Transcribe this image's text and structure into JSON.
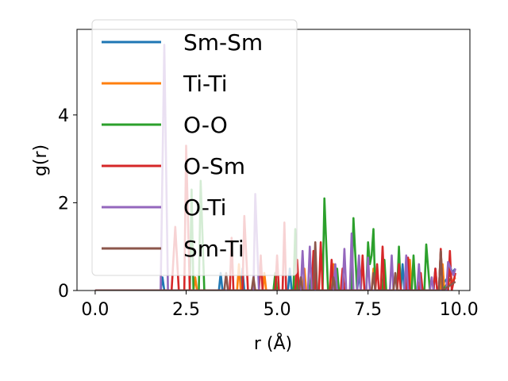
{
  "chart_data": {
    "type": "line",
    "xlabel": "r (Å)",
    "ylabel": "g(r)",
    "xlim": [
      -0.5,
      10.3
    ],
    "ylim": [
      0,
      5.95
    ],
    "xticks": [
      "0.0",
      "2.5",
      "5.0",
      "7.5",
      "10.0"
    ],
    "yticks": [
      "0",
      "2",
      "4"
    ],
    "legend_position": "upper left",
    "series": [
      {
        "name": "Sm-Sm",
        "color": "#1f77b4",
        "points": [
          [
            0,
            0
          ],
          [
            1.8,
            0
          ],
          [
            1.85,
            0.3
          ],
          [
            1.9,
            0
          ],
          [
            3.4,
            0
          ],
          [
            3.45,
            0.4
          ],
          [
            3.5,
            0
          ],
          [
            4.0,
            0
          ],
          [
            4.05,
            0.5
          ],
          [
            4.1,
            0
          ],
          [
            5.3,
            0
          ],
          [
            5.35,
            0.5
          ],
          [
            5.4,
            0
          ],
          [
            6.0,
            0
          ],
          [
            6.05,
            0.5
          ],
          [
            6.1,
            0
          ],
          [
            7.2,
            0
          ],
          [
            7.25,
            0.4
          ],
          [
            7.3,
            0
          ],
          [
            8.4,
            0
          ],
          [
            8.45,
            0.6
          ],
          [
            8.5,
            0
          ],
          [
            9.3,
            0
          ],
          [
            9.35,
            0.5
          ],
          [
            9.4,
            0
          ],
          [
            9.9,
            0.5
          ]
        ]
      },
      {
        "name": "Ti-Ti",
        "color": "#ff7f0e",
        "points": [
          [
            0,
            0
          ],
          [
            2.7,
            0
          ],
          [
            2.75,
            0.3
          ],
          [
            2.8,
            0
          ],
          [
            3.9,
            0
          ],
          [
            3.95,
            0.6
          ],
          [
            4.0,
            0
          ],
          [
            4.6,
            0
          ],
          [
            4.65,
            0.4
          ],
          [
            4.7,
            0
          ],
          [
            5.7,
            0
          ],
          [
            5.75,
            0.5
          ],
          [
            5.8,
            0
          ],
          [
            6.5,
            0
          ],
          [
            6.55,
            0.6
          ],
          [
            6.6,
            0
          ],
          [
            7.6,
            0
          ],
          [
            7.65,
            0.5
          ],
          [
            7.7,
            0
          ],
          [
            8.6,
            0
          ],
          [
            8.65,
            0.7
          ],
          [
            8.7,
            0
          ],
          [
            9.5,
            0
          ],
          [
            9.55,
            0.6
          ],
          [
            9.6,
            0
          ],
          [
            9.9,
            0.3
          ]
        ]
      },
      {
        "name": "O-O",
        "color": "#2ca02c",
        "points": [
          [
            0,
            0
          ],
          [
            2.6,
            0
          ],
          [
            2.65,
            2.3
          ],
          [
            2.7,
            0
          ],
          [
            2.85,
            0
          ],
          [
            2.9,
            2.5
          ],
          [
            3.0,
            0
          ],
          [
            4.9,
            0
          ],
          [
            4.95,
            0.4
          ],
          [
            5.0,
            0
          ],
          [
            5.45,
            0
          ],
          [
            5.5,
            1.4
          ],
          [
            5.55,
            0
          ],
          [
            5.9,
            0
          ],
          [
            5.95,
            0.5
          ],
          [
            6.0,
            0
          ],
          [
            6.25,
            0
          ],
          [
            6.3,
            2.1
          ],
          [
            6.4,
            0
          ],
          [
            6.6,
            0
          ],
          [
            6.65,
            0.5
          ],
          [
            6.7,
            0
          ],
          [
            7.05,
            0
          ],
          [
            7.1,
            1.65
          ],
          [
            7.2,
            0
          ],
          [
            7.45,
            0
          ],
          [
            7.5,
            1.1
          ],
          [
            7.55,
            0.6
          ],
          [
            7.6,
            0.8
          ],
          [
            7.65,
            1.4
          ],
          [
            7.7,
            0
          ],
          [
            7.9,
            0
          ],
          [
            7.95,
            0.7
          ],
          [
            8.0,
            0
          ],
          [
            8.3,
            0
          ],
          [
            8.35,
            1.0
          ],
          [
            8.4,
            0
          ],
          [
            8.7,
            0
          ],
          [
            8.75,
            0.8
          ],
          [
            8.8,
            0
          ],
          [
            9.05,
            0
          ],
          [
            9.1,
            1.05
          ],
          [
            9.2,
            0
          ],
          [
            9.45,
            0
          ],
          [
            9.5,
            0.9
          ],
          [
            9.55,
            0
          ],
          [
            9.8,
            0.3
          ]
        ]
      },
      {
        "name": "O-Sm",
        "color": "#d62728",
        "points": [
          [
            0,
            0
          ],
          [
            2.1,
            0
          ],
          [
            2.2,
            1.45
          ],
          [
            2.3,
            0
          ],
          [
            2.45,
            0
          ],
          [
            2.5,
            3.3
          ],
          [
            2.6,
            0
          ],
          [
            3.7,
            0
          ],
          [
            3.75,
            1.2
          ],
          [
            3.8,
            0
          ],
          [
            4.05,
            0
          ],
          [
            4.1,
            1.7
          ],
          [
            4.2,
            0
          ],
          [
            4.5,
            0
          ],
          [
            4.55,
            0.8
          ],
          [
            4.6,
            0
          ],
          [
            4.95,
            0
          ],
          [
            5.0,
            0.8
          ],
          [
            5.05,
            0
          ],
          [
            5.15,
            0
          ],
          [
            5.2,
            1.55
          ],
          [
            5.25,
            0
          ],
          [
            5.5,
            0
          ],
          [
            5.55,
            0.7
          ],
          [
            5.6,
            0
          ],
          [
            5.95,
            0
          ],
          [
            6.0,
            0.9
          ],
          [
            6.05,
            0
          ],
          [
            6.15,
            0
          ],
          [
            6.2,
            1.1
          ],
          [
            6.25,
            0
          ],
          [
            6.45,
            0
          ],
          [
            6.5,
            0.7
          ],
          [
            6.55,
            0
          ],
          [
            6.75,
            0
          ],
          [
            6.8,
            0.5
          ],
          [
            6.85,
            0
          ],
          [
            7.3,
            0
          ],
          [
            7.35,
            0.8
          ],
          [
            7.4,
            0
          ],
          [
            7.7,
            0
          ],
          [
            7.75,
            0.6
          ],
          [
            7.8,
            0
          ],
          [
            7.85,
            0
          ],
          [
            7.9,
            1.0
          ],
          [
            7.95,
            0
          ],
          [
            8.3,
            0
          ],
          [
            8.35,
            0.6
          ],
          [
            8.4,
            0
          ],
          [
            8.55,
            0
          ],
          [
            8.6,
            0.75
          ],
          [
            8.65,
            0
          ],
          [
            8.9,
            0
          ],
          [
            8.95,
            0.4
          ],
          [
            9.0,
            0
          ],
          [
            9.3,
            0
          ],
          [
            9.35,
            0.5
          ],
          [
            9.4,
            0
          ],
          [
            9.45,
            0
          ],
          [
            9.5,
            0.95
          ],
          [
            9.55,
            0
          ],
          [
            9.7,
            0
          ],
          [
            9.75,
            0.9
          ],
          [
            9.8,
            0
          ],
          [
            9.9,
            0.4
          ]
        ]
      },
      {
        "name": "O-Ti",
        "color": "#9467bd",
        "points": [
          [
            0,
            0
          ],
          [
            1.8,
            0
          ],
          [
            1.9,
            5.6
          ],
          [
            2.0,
            0
          ],
          [
            4.35,
            0
          ],
          [
            4.4,
            2.2
          ],
          [
            4.5,
            0
          ],
          [
            5.65,
            0
          ],
          [
            5.7,
            0.9
          ],
          [
            5.75,
            0
          ],
          [
            5.85,
            0
          ],
          [
            5.9,
            1.0
          ],
          [
            5.95,
            0
          ],
          [
            6.55,
            0
          ],
          [
            6.6,
            0.6
          ],
          [
            6.65,
            0
          ],
          [
            6.8,
            0
          ],
          [
            6.85,
            0.95
          ],
          [
            6.9,
            0
          ],
          [
            7.0,
            0
          ],
          [
            7.05,
            1.3
          ],
          [
            7.1,
            0
          ],
          [
            7.2,
            0
          ],
          [
            7.25,
            0.8
          ],
          [
            7.3,
            0
          ],
          [
            7.45,
            0
          ],
          [
            7.5,
            0.75
          ],
          [
            7.55,
            0
          ],
          [
            8.1,
            0
          ],
          [
            8.15,
            0.8
          ],
          [
            8.2,
            0
          ],
          [
            8.5,
            0
          ],
          [
            8.55,
            0.8
          ],
          [
            8.6,
            0
          ],
          [
            8.85,
            0
          ],
          [
            8.9,
            0.6
          ],
          [
            8.95,
            0
          ],
          [
            9.2,
            0
          ],
          [
            9.25,
            0.3
          ],
          [
            9.3,
            0
          ],
          [
            9.65,
            0
          ],
          [
            9.7,
            0.65
          ],
          [
            9.85,
            0.35
          ],
          [
            9.9,
            0.5
          ]
        ]
      },
      {
        "name": "Sm-Ti",
        "color": "#8c564b",
        "points": [
          [
            0,
            0
          ],
          [
            3.55,
            0
          ],
          [
            3.6,
            0.4
          ],
          [
            3.65,
            0
          ],
          [
            4.3,
            0
          ],
          [
            4.35,
            0.3
          ],
          [
            4.4,
            0
          ],
          [
            5.6,
            0
          ],
          [
            5.65,
            0.3
          ],
          [
            5.7,
            0
          ],
          [
            6.0,
            0
          ],
          [
            6.05,
            1.1
          ],
          [
            6.1,
            0
          ],
          [
            6.5,
            0
          ],
          [
            6.55,
            0.3
          ],
          [
            6.6,
            0
          ],
          [
            7.6,
            0
          ],
          [
            7.65,
            0.4
          ],
          [
            7.7,
            0
          ],
          [
            8.2,
            0
          ],
          [
            8.25,
            0.4
          ],
          [
            8.3,
            0
          ],
          [
            9.45,
            0
          ],
          [
            9.5,
            0.9
          ],
          [
            9.55,
            0
          ],
          [
            9.9,
            0.2
          ]
        ]
      }
    ]
  }
}
